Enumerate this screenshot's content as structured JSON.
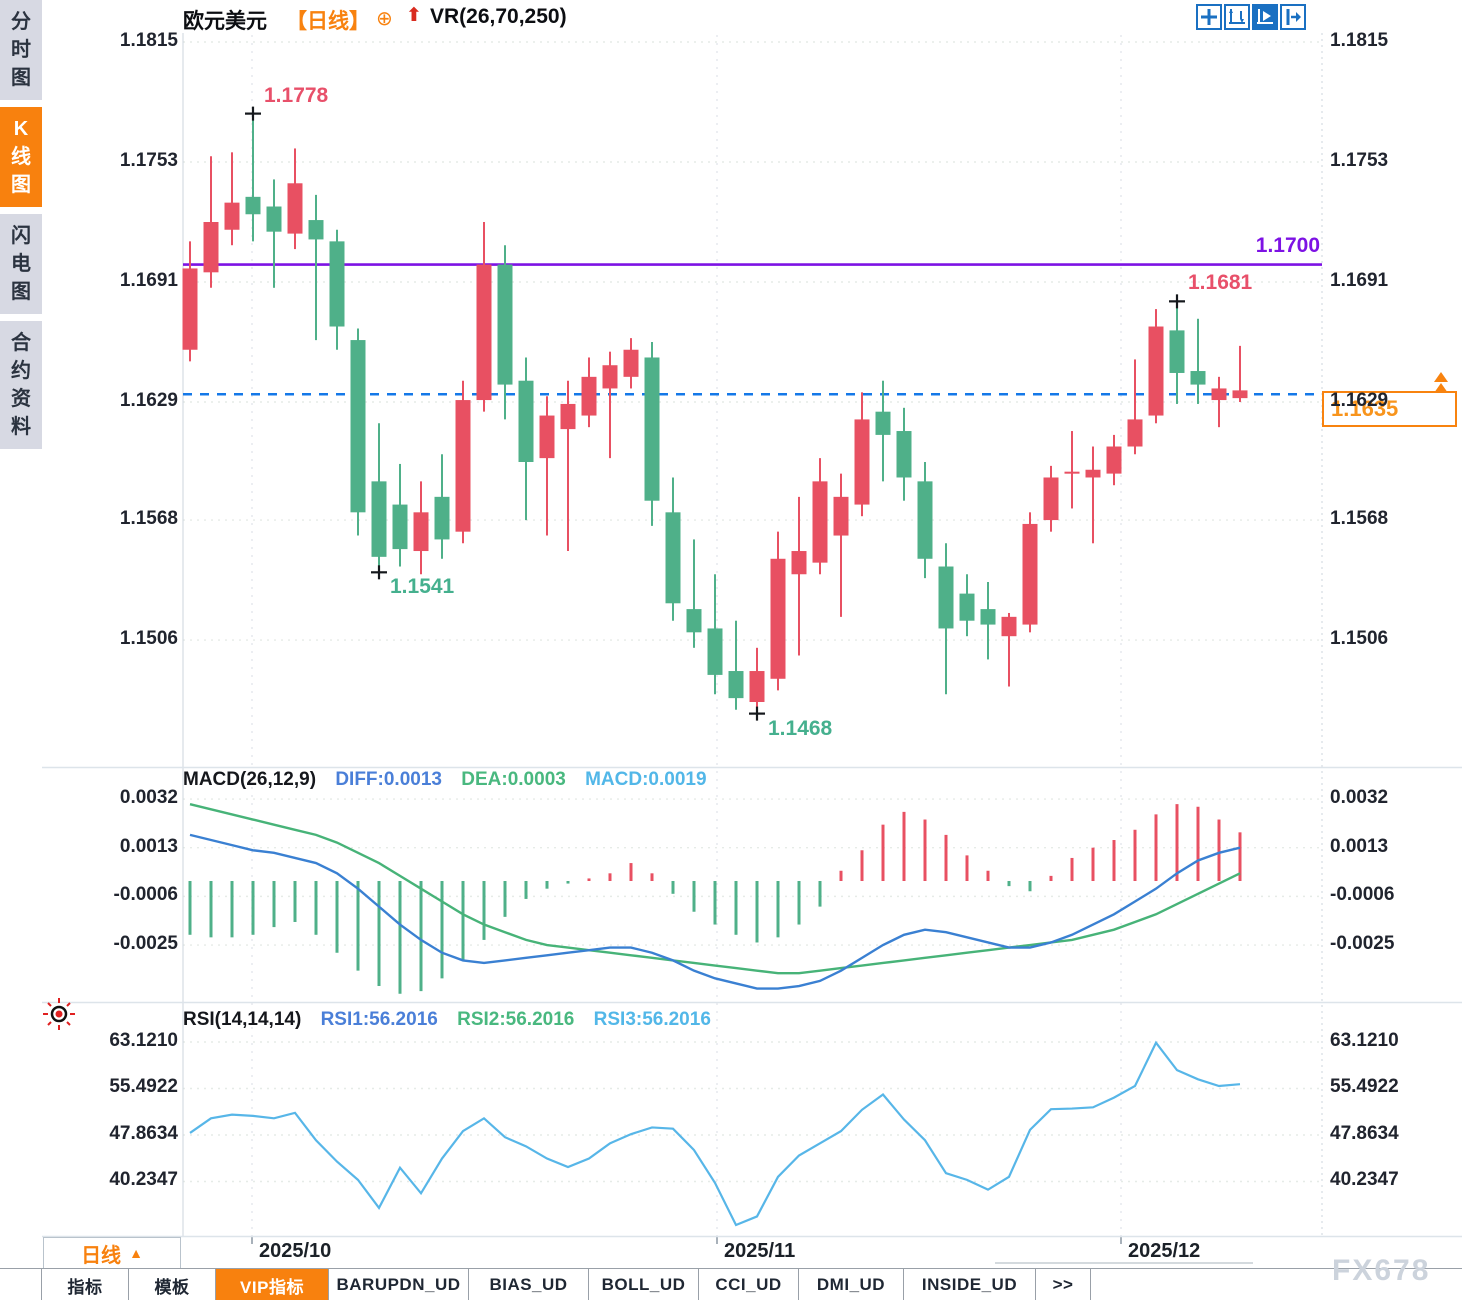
{
  "header": {
    "symbol": "欧元美元",
    "period_tag": "【日线】",
    "plus_icon": "⊕",
    "arrow_icon": "⬆",
    "overlay": "VR(26,70,250)"
  },
  "sidebar": {
    "items": [
      {
        "label": "分时图",
        "active": false
      },
      {
        "label": "K线图",
        "active": true
      },
      {
        "label": "闪电图",
        "active": false
      },
      {
        "label": "合约资料",
        "active": false
      }
    ]
  },
  "toolbar_icons": [
    {
      "name": "pan-crosshair-icon",
      "active": false
    },
    {
      "name": "axis-range-icon",
      "active": false
    },
    {
      "name": "auto-follow-icon",
      "active": true
    },
    {
      "name": "jump-to-latest-icon",
      "active": false
    }
  ],
  "price_axis": {
    "labels": [
      "1.1815",
      "1.1753",
      "1.1691",
      "1.1629",
      "1.1568",
      "1.1506"
    ],
    "values": [
      1.1815,
      1.1753,
      1.1691,
      1.1629,
      1.1568,
      1.1506
    ]
  },
  "macd_axis": {
    "labels": [
      "0.0032",
      "0.0013",
      "-0.0006",
      "-0.0025"
    ],
    "values": [
      0.0032,
      0.0013,
      -0.0006,
      -0.0025
    ]
  },
  "rsi_axis": {
    "labels": [
      "63.1210",
      "55.4922",
      "47.8634",
      "40.2347"
    ],
    "values": [
      63.121,
      55.4922,
      47.8634,
      40.2347
    ]
  },
  "macd_header": {
    "name": "MACD(26,12,9)",
    "diff": "DIFF:0.0013",
    "dea": "DEA:0.0003",
    "macd": "MACD:0.0019"
  },
  "rsi_header": {
    "name": "RSI(14,14,14)",
    "rsi1": "RSI1:56.2016",
    "rsi2": "RSI2:56.2016",
    "rsi3": "RSI3:56.2016"
  },
  "levels": {
    "resistance": {
      "label": "1.1700",
      "price": 1.17
    },
    "dashed_current": {
      "price": 1.1633
    },
    "current_price": {
      "label": "1.1635",
      "value": 1.1635
    }
  },
  "annotations": [
    {
      "label": "1.1778",
      "candle": 4,
      "price": 1.1778,
      "type": "high"
    },
    {
      "label": "1.1541",
      "candle": 10,
      "price": 1.1541,
      "type": "low"
    },
    {
      "label": "1.1468",
      "candle": 28,
      "price": 1.1468,
      "type": "low"
    },
    {
      "label": "1.1681",
      "candle": 48,
      "price": 1.1681,
      "type": "high"
    }
  ],
  "x_axis": {
    "labels": [
      "2025/10",
      "2025/11",
      "2025/12"
    ],
    "positions": [
      252,
      717,
      1121
    ]
  },
  "period_selector": {
    "label": "日线",
    "arrow": "▲"
  },
  "tabs": [
    {
      "label": "指标",
      "active": false
    },
    {
      "label": "模板",
      "active": false
    },
    {
      "label": "VIP指标",
      "active": true
    },
    {
      "label": "BARUPDN_UD",
      "active": false
    },
    {
      "label": "BIAS_UD",
      "active": false
    },
    {
      "label": "BOLL_UD",
      "active": false
    },
    {
      "label": "CCI_UD",
      "active": false
    },
    {
      "label": "DMI_UD",
      "active": false
    },
    {
      "label": "INSIDE_UD",
      "active": false
    },
    {
      "label": ">>",
      "active": false
    }
  ],
  "watermark": "FX678",
  "colors": {
    "up": "#e85062",
    "down": "#4fb089",
    "macd_diff_line": "#3a80d2",
    "macd_dea_line": "#47b378",
    "rsi_line": "#57b6e8",
    "resistance_purple": "#7d12e4",
    "dashed_blue": "#1478e8",
    "accent_orange": "#f8820f",
    "annotation_red": "#e8506a",
    "annotation_green": "#45b08e",
    "grid": "#e6ebe7",
    "cross_mark": "#15181c"
  },
  "chart_data": {
    "type": "candlestick+macd+rsi",
    "symbol": "EUR/USD 欧元美元",
    "period": "daily",
    "note": "values estimated from pixels; anchors: high 1.1778, low 1.1541, low 1.1468, high 1.1681, last close 1.1635",
    "price_range": [
      1.1815,
      1.1506
    ],
    "candles_ohlc": [
      [
        1.1656,
        1.1712,
        1.165,
        1.1698
      ],
      [
        1.1696,
        1.1756,
        1.1688,
        1.1722
      ],
      [
        1.1718,
        1.1758,
        1.171,
        1.1732
      ],
      [
        1.1735,
        1.1778,
        1.1712,
        1.1726
      ],
      [
        1.173,
        1.1744,
        1.1688,
        1.1717
      ],
      [
        1.1716,
        1.176,
        1.1708,
        1.1742
      ],
      [
        1.1723,
        1.1736,
        1.1661,
        1.1713
      ],
      [
        1.1712,
        1.1718,
        1.1656,
        1.1668
      ],
      [
        1.1661,
        1.1667,
        1.156,
        1.1572
      ],
      [
        1.1588,
        1.1618,
        1.1541,
        1.1549
      ],
      [
        1.1576,
        1.1597,
        1.1544,
        1.1553
      ],
      [
        1.1552,
        1.1588,
        1.154,
        1.1572
      ],
      [
        1.158,
        1.1602,
        1.1548,
        1.1558
      ],
      [
        1.1562,
        1.164,
        1.1556,
        1.163
      ],
      [
        1.163,
        1.1722,
        1.1624,
        1.17
      ],
      [
        1.17,
        1.171,
        1.162,
        1.1638
      ],
      [
        1.164,
        1.1652,
        1.1568,
        1.1598
      ],
      [
        1.16,
        1.1632,
        1.156,
        1.1622
      ],
      [
        1.1615,
        1.164,
        1.1552,
        1.1628
      ],
      [
        1.1622,
        1.1652,
        1.1616,
        1.1642
      ],
      [
        1.1636,
        1.1655,
        1.16,
        1.1648
      ],
      [
        1.1642,
        1.1662,
        1.1636,
        1.1656
      ],
      [
        1.1652,
        1.166,
        1.1565,
        1.1578
      ],
      [
        1.1572,
        1.159,
        1.1516,
        1.1525
      ],
      [
        1.1522,
        1.1558,
        1.1502,
        1.151
      ],
      [
        1.1512,
        1.154,
        1.1478,
        1.1488
      ],
      [
        1.149,
        1.1516,
        1.147,
        1.1476
      ],
      [
        1.1474,
        1.1502,
        1.1468,
        1.149
      ],
      [
        1.1486,
        1.1562,
        1.148,
        1.1548
      ],
      [
        1.154,
        1.158,
        1.1498,
        1.1552
      ],
      [
        1.1546,
        1.16,
        1.154,
        1.1588
      ],
      [
        1.156,
        1.1592,
        1.1518,
        1.158
      ],
      [
        1.1576,
        1.1634,
        1.157,
        1.162
      ],
      [
        1.1624,
        1.164,
        1.1588,
        1.1612
      ],
      [
        1.1614,
        1.1626,
        1.1578,
        1.159
      ],
      [
        1.1588,
        1.1598,
        1.1538,
        1.1548
      ],
      [
        1.1544,
        1.1556,
        1.1478,
        1.1512
      ],
      [
        1.153,
        1.154,
        1.1508,
        1.1516
      ],
      [
        1.1522,
        1.1536,
        1.1496,
        1.1514
      ],
      [
        1.1508,
        1.152,
        1.1482,
        1.1518
      ],
      [
        1.1514,
        1.1572,
        1.151,
        1.1566
      ],
      [
        1.1568,
        1.1596,
        1.1562,
        1.159
      ],
      [
        1.1592,
        1.1614,
        1.1574,
        1.1593
      ],
      [
        1.159,
        1.1606,
        1.1556,
        1.1594
      ],
      [
        1.1592,
        1.1612,
        1.1586,
        1.1606
      ],
      [
        1.1606,
        1.1651,
        1.1602,
        1.162
      ],
      [
        1.1622,
        1.1677,
        1.1618,
        1.1668
      ],
      [
        1.1666,
        1.1681,
        1.1628,
        1.1644
      ],
      [
        1.1645,
        1.1672,
        1.1628,
        1.1638
      ],
      [
        1.163,
        1.1642,
        1.1616,
        1.1636
      ],
      [
        1.1631,
        1.1658,
        1.1629,
        1.1635
      ]
    ],
    "macd": {
      "diff": [
        0.0018,
        0.0016,
        0.0014,
        0.0012,
        0.0011,
        0.0009,
        0.0007,
        0.0003,
        -0.0003,
        -0.001,
        -0.0017,
        -0.0023,
        -0.0028,
        -0.0031,
        -0.0032,
        -0.0031,
        -0.003,
        -0.0029,
        -0.0028,
        -0.0027,
        -0.0026,
        -0.0026,
        -0.0028,
        -0.0031,
        -0.0035,
        -0.0038,
        -0.004,
        -0.0042,
        -0.0042,
        -0.0041,
        -0.0039,
        -0.0035,
        -0.003,
        -0.0025,
        -0.0021,
        -0.0019,
        -0.002,
        -0.0022,
        -0.0024,
        -0.0026,
        -0.0026,
        -0.0024,
        -0.0021,
        -0.0017,
        -0.0013,
        -0.0008,
        -0.0003,
        0.0003,
        0.0008,
        0.0011,
        0.0013
      ],
      "dea": [
        0.003,
        0.0028,
        0.0026,
        0.0024,
        0.0022,
        0.002,
        0.0018,
        0.0015,
        0.0011,
        0.0007,
        0.0002,
        -0.0003,
        -0.0008,
        -0.0013,
        -0.0017,
        -0.002,
        -0.0023,
        -0.0025,
        -0.0026,
        -0.0027,
        -0.0028,
        -0.0029,
        -0.003,
        -0.0031,
        -0.0032,
        -0.0033,
        -0.0034,
        -0.0035,
        -0.0036,
        -0.0036,
        -0.0035,
        -0.0034,
        -0.0033,
        -0.0032,
        -0.0031,
        -0.003,
        -0.0029,
        -0.0028,
        -0.0027,
        -0.0026,
        -0.0025,
        -0.0024,
        -0.0023,
        -0.0021,
        -0.0019,
        -0.0016,
        -0.0013,
        -0.0009,
        -0.0005,
        -0.0001,
        0.0003
      ],
      "hist": [
        -0.0021,
        -0.0022,
        -0.0022,
        -0.0021,
        -0.0018,
        -0.0016,
        -0.0021,
        -0.0028,
        -0.0035,
        -0.0041,
        -0.0044,
        -0.0043,
        -0.0038,
        -0.0031,
        -0.0023,
        -0.0014,
        -0.0007,
        -0.0003,
        -0.0001,
        0.0001,
        0.0003,
        0.0007,
        0.0003,
        -0.0005,
        -0.0012,
        -0.0017,
        -0.0021,
        -0.0024,
        -0.0022,
        -0.0017,
        -0.001,
        0.0004,
        0.0012,
        0.0022,
        0.0027,
        0.0024,
        0.0018,
        0.001,
        0.0004,
        -0.0002,
        -0.0004,
        0.0002,
        0.0009,
        0.0013,
        0.0016,
        0.002,
        0.0026,
        0.003,
        0.0029,
        0.0024,
        0.0019
      ]
    },
    "rsi": [
      48.2,
      50.6,
      51.2,
      51.0,
      50.6,
      51.5,
      47.0,
      43.5,
      40.5,
      35.9,
      42.5,
      38.3,
      44.0,
      48.5,
      50.6,
      47.5,
      46.0,
      44.0,
      42.6,
      44.0,
      46.5,
      48.0,
      49.1,
      48.9,
      45.4,
      40.0,
      33.1,
      34.5,
      41.0,
      44.5,
      46.5,
      48.5,
      52.0,
      54.5,
      50.4,
      47.0,
      41.6,
      40.5,
      38.9,
      41.0,
      48.7,
      52.1,
      52.2,
      52.4,
      54.0,
      55.9,
      63.0,
      58.5,
      57.0,
      55.9,
      56.2
    ]
  }
}
